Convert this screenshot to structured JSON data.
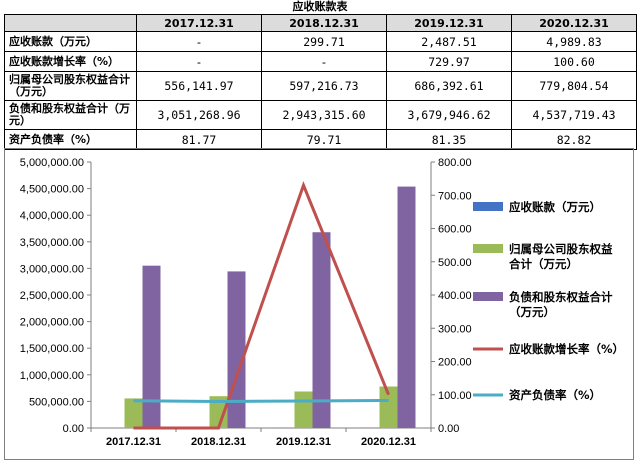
{
  "table": {
    "caption": "应收账款表",
    "columns": [
      "",
      "2017.12.31",
      "2018.12.31",
      "2019.12.31",
      "2020.12.31"
    ],
    "rows": [
      {
        "label": "应收账款（万元）",
        "values": [
          "-",
          "299.71",
          "2,487.51",
          "4,989.83"
        ]
      },
      {
        "label": "应收账款增长率（%）",
        "values": [
          "-",
          "-",
          "729.97",
          "100.60"
        ]
      },
      {
        "label": "归属母公司股东权益合计（万元）",
        "values": [
          "556,141.97",
          "597,216.73",
          "686,392.61",
          "779,804.54"
        ]
      },
      {
        "label": "负债和股东权益合计（万元）",
        "values": [
          "3,051,268.96",
          "2,943,315.60",
          "3,679,946.62",
          "4,537,719.43"
        ]
      },
      {
        "label": "资产负债率（%）",
        "values": [
          "81.77",
          "79.71",
          "81.35",
          "82.82"
        ]
      }
    ]
  },
  "chart_data": {
    "type": "bar",
    "categories": [
      "2017.12.31",
      "2018.12.31",
      "2019.12.31",
      "2020.12.31"
    ],
    "left_axis": {
      "min": 0,
      "max": 5000000,
      "step": 500000,
      "tick_labels": [
        "0.00",
        "500,000.00",
        "1,000,000.00",
        "1,500,000.00",
        "2,000,000.00",
        "2,500,000.00",
        "3,000,000.00",
        "3,500,000.00",
        "4,000,000.00",
        "4,500,000.00",
        "5,000,000.00"
      ]
    },
    "right_axis": {
      "min": 0,
      "max": 800,
      "step": 100,
      "tick_labels": [
        "0.00",
        "100.00",
        "200.00",
        "300.00",
        "400.00",
        "500.00",
        "600.00",
        "700.00",
        "800.00"
      ]
    },
    "series": [
      {
        "name": "应收账款（万元）",
        "kind": "bar",
        "axis": "left",
        "color": "#4472c4",
        "values": [
          0,
          299.71,
          2487.51,
          4989.83
        ]
      },
      {
        "name": "归属母公司股东权益合计（万元）",
        "kind": "bar",
        "axis": "left",
        "color": "#9bbb59",
        "values": [
          556141.97,
          597216.73,
          686392.61,
          779804.54
        ]
      },
      {
        "name": "负债和股东权益合计（万元）",
        "kind": "bar",
        "axis": "left",
        "color": "#8064a2",
        "values": [
          3051268.96,
          2943315.6,
          3679946.62,
          4537719.43
        ]
      },
      {
        "name": "应收账款增长率（%）",
        "kind": "line",
        "axis": "right",
        "color": "#c0504d",
        "values": [
          0,
          0,
          729.97,
          100.6
        ]
      },
      {
        "name": "资产负债率（%）",
        "kind": "line",
        "axis": "right",
        "color": "#4bacc6",
        "values": [
          81.77,
          79.71,
          81.35,
          82.82
        ]
      }
    ],
    "legend": {
      "position": "right",
      "items": [
        {
          "lines": [
            "应收账款（万元）"
          ],
          "marker": "bar",
          "color": "#4472c4"
        },
        {
          "lines": [
            "归属母公司股东权益",
            "合计（万元）"
          ],
          "marker": "bar",
          "color": "#9bbb59"
        },
        {
          "lines": [
            "负债和股东权益合计",
            "（万元）"
          ],
          "marker": "bar",
          "color": "#8064a2"
        },
        {
          "lines": [
            "应收账款增长率（%）"
          ],
          "marker": "line",
          "color": "#c0504d"
        },
        {
          "lines": [
            "资产负债率（%）"
          ],
          "marker": "line",
          "color": "#4bacc6"
        }
      ]
    },
    "grid": false
  }
}
